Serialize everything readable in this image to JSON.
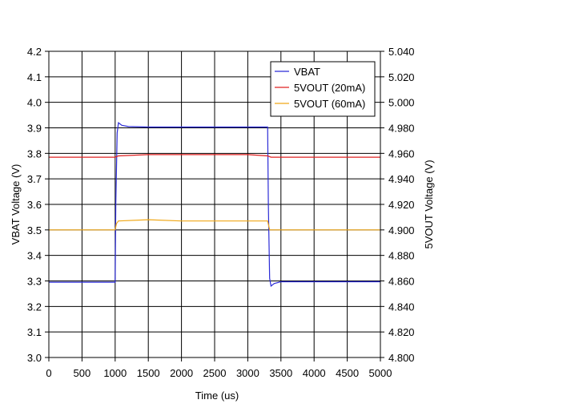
{
  "chart_data": {
    "type": "line",
    "xlabel": "Time (us)",
    "ylabel": "VBAT Voltage (V)",
    "y2label": "5VOUT Voltage (V)",
    "xlim": [
      0,
      5000
    ],
    "ylim": [
      3.0,
      4.2
    ],
    "y2lim": [
      4.8,
      5.04
    ],
    "x_ticks": [
      "0",
      "500",
      "1000",
      "1500",
      "2000",
      "2500",
      "3000",
      "3500",
      "4000",
      "4500",
      "5000"
    ],
    "y_ticks": [
      "3.0",
      "3.1",
      "3.2",
      "3.3",
      "3.4",
      "3.5",
      "3.6",
      "3.7",
      "3.8",
      "3.9",
      "4.0",
      "4.1",
      "4.2"
    ],
    "y2_ticks": [
      "4.800",
      "4.820",
      "4.840",
      "4.860",
      "4.880",
      "4.900",
      "4.920",
      "4.940",
      "4.960",
      "4.980",
      "5.000",
      "5.020",
      "5.040"
    ],
    "grid": true,
    "legend_position": "top-right",
    "series": [
      {
        "name": "VBAT",
        "axis": "left",
        "color": "#2b2bd6",
        "x": [
          0,
          1000,
          1010,
          1030,
          1050,
          1100,
          1200,
          1500,
          2000,
          2500,
          3000,
          3300,
          3310,
          3330,
          3350,
          3400,
          3500,
          4000,
          4500,
          5000
        ],
        "y": [
          3.295,
          3.295,
          3.6,
          3.88,
          3.92,
          3.91,
          3.905,
          3.903,
          3.903,
          3.903,
          3.903,
          3.903,
          3.6,
          3.31,
          3.28,
          3.29,
          3.297,
          3.297,
          3.297,
          3.297
        ]
      },
      {
        "name": "5VOUT (20mA)",
        "axis": "right",
        "color": "#e02020",
        "x": [
          0,
          500,
          1000,
          1050,
          1500,
          2000,
          2500,
          3000,
          3300,
          3350,
          3500,
          4000,
          4500,
          5000
        ],
        "y": [
          4.957,
          4.957,
          4.957,
          4.958,
          4.959,
          4.959,
          4.959,
          4.959,
          4.958,
          4.957,
          4.957,
          4.957,
          4.957,
          4.957
        ]
      },
      {
        "name": "5VOUT (60mA)",
        "axis": "right",
        "color": "#f0a818",
        "x": [
          0,
          500,
          1000,
          1020,
          1050,
          1500,
          2000,
          2500,
          3000,
          3200,
          3300,
          3330,
          3400,
          4000,
          4500,
          5000
        ],
        "y": [
          4.9,
          4.9,
          4.9,
          4.905,
          4.907,
          4.908,
          4.907,
          4.907,
          4.907,
          4.907,
          4.907,
          4.9,
          4.9,
          4.9,
          4.9,
          4.9
        ]
      }
    ]
  }
}
